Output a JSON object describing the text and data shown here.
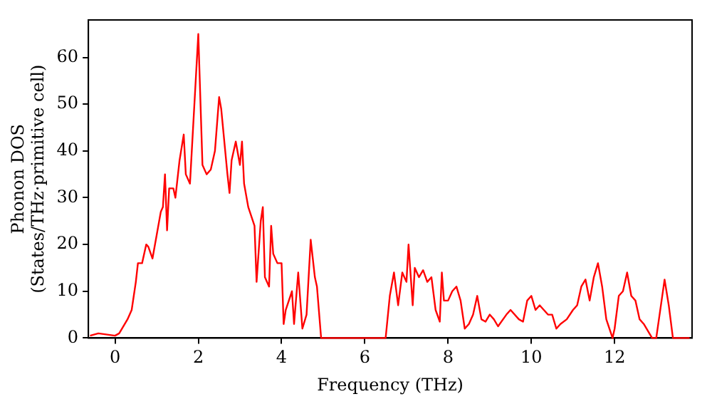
{
  "chart_data": {
    "type": "line",
    "xlabel": "Frequency (THz)",
    "ylabel": "Phonon DOS\n(States/THz·primitive cell)",
    "xlim": [
      -0.64,
      13.86
    ],
    "ylim": [
      0,
      68
    ],
    "xticks": [
      0,
      2,
      4,
      6,
      8,
      10,
      12
    ],
    "yticks": [
      0,
      10,
      20,
      30,
      40,
      50,
      60
    ],
    "grid": false,
    "legend": false,
    "marker": "none",
    "line_style": "solid",
    "series": [
      {
        "color": "#ff0000",
        "x": [
          -0.6,
          -0.4,
          0,
          0.1,
          0.3,
          0.4,
          0.5,
          0.55,
          0.65,
          0.75,
          0.8,
          0.9,
          1.0,
          1.1,
          1.15,
          1.2,
          1.25,
          1.3,
          1.4,
          1.45,
          1.55,
          1.65,
          1.7,
          1.8,
          2.0,
          2.1,
          2.2,
          2.3,
          2.4,
          2.5,
          2.55,
          2.7,
          2.75,
          2.8,
          2.9,
          3.0,
          3.05,
          3.1,
          3.2,
          3.35,
          3.4,
          3.5,
          3.55,
          3.6,
          3.7,
          3.75,
          3.8,
          3.9,
          4.0,
          4.05,
          4.1,
          4.25,
          4.3,
          4.4,
          4.5,
          4.6,
          4.7,
          4.8,
          4.85,
          4.95,
          5.0,
          6.5,
          6.6,
          6.7,
          6.8,
          6.9,
          7.0,
          7.05,
          7.15,
          7.2,
          7.3,
          7.4,
          7.5,
          7.6,
          7.7,
          7.8,
          7.85,
          7.9,
          8.0,
          8.1,
          8.2,
          8.3,
          8.4,
          8.5,
          8.6,
          8.7,
          8.8,
          8.9,
          9.0,
          9.1,
          9.2,
          9.4,
          9.5,
          9.7,
          9.8,
          9.9,
          10.0,
          10.1,
          10.2,
          10.4,
          10.5,
          10.6,
          10.7,
          10.85,
          11.0,
          11.1,
          11.2,
          11.3,
          11.4,
          11.5,
          11.6,
          11.7,
          11.8,
          11.95,
          12.0,
          12.1,
          12.2,
          12.3,
          12.4,
          12.5,
          12.6,
          12.7,
          12.9,
          13.0,
          13.2,
          13.3,
          13.4,
          13.8
        ],
        "values": [
          0.5,
          1,
          0.5,
          1,
          4,
          6,
          12,
          16,
          16,
          20,
          19.5,
          17,
          22,
          27,
          28,
          35,
          23,
          32,
          32,
          30,
          38,
          43.5,
          35,
          33,
          65,
          37,
          35,
          36,
          40,
          51.5,
          49,
          35,
          31,
          38,
          42,
          37,
          42,
          33,
          28,
          24,
          12,
          25,
          28,
          13,
          11,
          24,
          18,
          16,
          16,
          3,
          6,
          10,
          3,
          14,
          2,
          5,
          21,
          13,
          11,
          0,
          0,
          0,
          9,
          14,
          7,
          14,
          12,
          20,
          7,
          15,
          13,
          14.5,
          12,
          13,
          6,
          3.5,
          14,
          8,
          8,
          10,
          11,
          8,
          2,
          3,
          5,
          9,
          4,
          3.5,
          5,
          4,
          2.5,
          5,
          6,
          4,
          3.5,
          8,
          9,
          6,
          7,
          5,
          5,
          2,
          3,
          4,
          6,
          7,
          11,
          12.5,
          8,
          13,
          16,
          11,
          4,
          0,
          2,
          9,
          10,
          14,
          9,
          8,
          4,
          3,
          0,
          0,
          12.5,
          7,
          0,
          0
        ]
      }
    ]
  }
}
